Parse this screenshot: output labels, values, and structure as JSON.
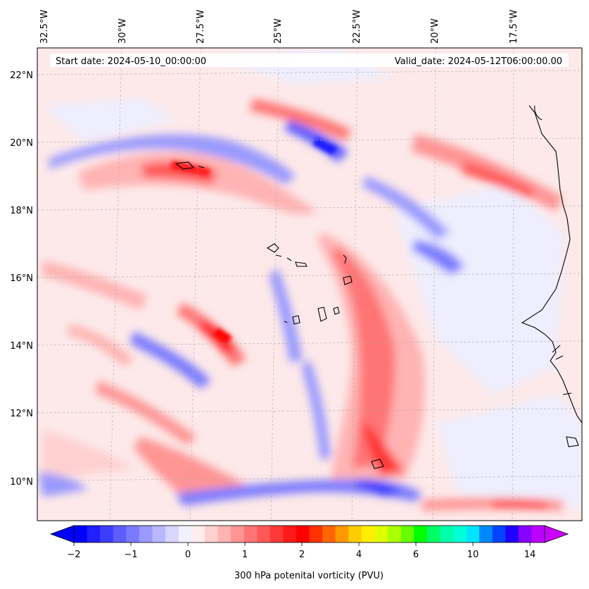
{
  "header": {
    "start_date": "Start date: 2024-05-10_00:00:00",
    "valid_date": "Valid_date: 2024-05-12T06:00:00.00"
  },
  "axes": {
    "lon_labels": [
      "32.5°W",
      "30°W",
      "27.5°W",
      "25°W",
      "22.5°W",
      "20°W",
      "17.5°W"
    ],
    "lat_labels": [
      "22°N",
      "20°N",
      "18°N",
      "16°N",
      "14°N",
      "12°N",
      "10°N"
    ]
  },
  "colorbar": {
    "label": "300 hPa potenital vorticity (PVU)",
    "tick_labels": [
      "−2",
      "−1",
      "0",
      "1",
      "2",
      "4",
      "6",
      "10",
      "14"
    ],
    "colors": [
      "#0000ff",
      "#1f1fff",
      "#3d3dff",
      "#5c5cff",
      "#7a7aff",
      "#9999ff",
      "#b8b8ff",
      "#d6d6ff",
      "#f0f0ff",
      "#ffecec",
      "#ffd0d0",
      "#ffb3b3",
      "#ff9494",
      "#ff7575",
      "#ff5757",
      "#ff3838",
      "#ff1a1a",
      "#ff0000",
      "#ff3300",
      "#ff6600",
      "#ff9900",
      "#ffcc00",
      "#ffee00",
      "#ddff00",
      "#aaff00",
      "#66ff00",
      "#00ff00",
      "#00ff66",
      "#00ffaa",
      "#00ffd5",
      "#00e5ff",
      "#0088ff",
      "#0044ff",
      "#2200ff",
      "#8800ff",
      "#bb00ff"
    ]
  }
}
